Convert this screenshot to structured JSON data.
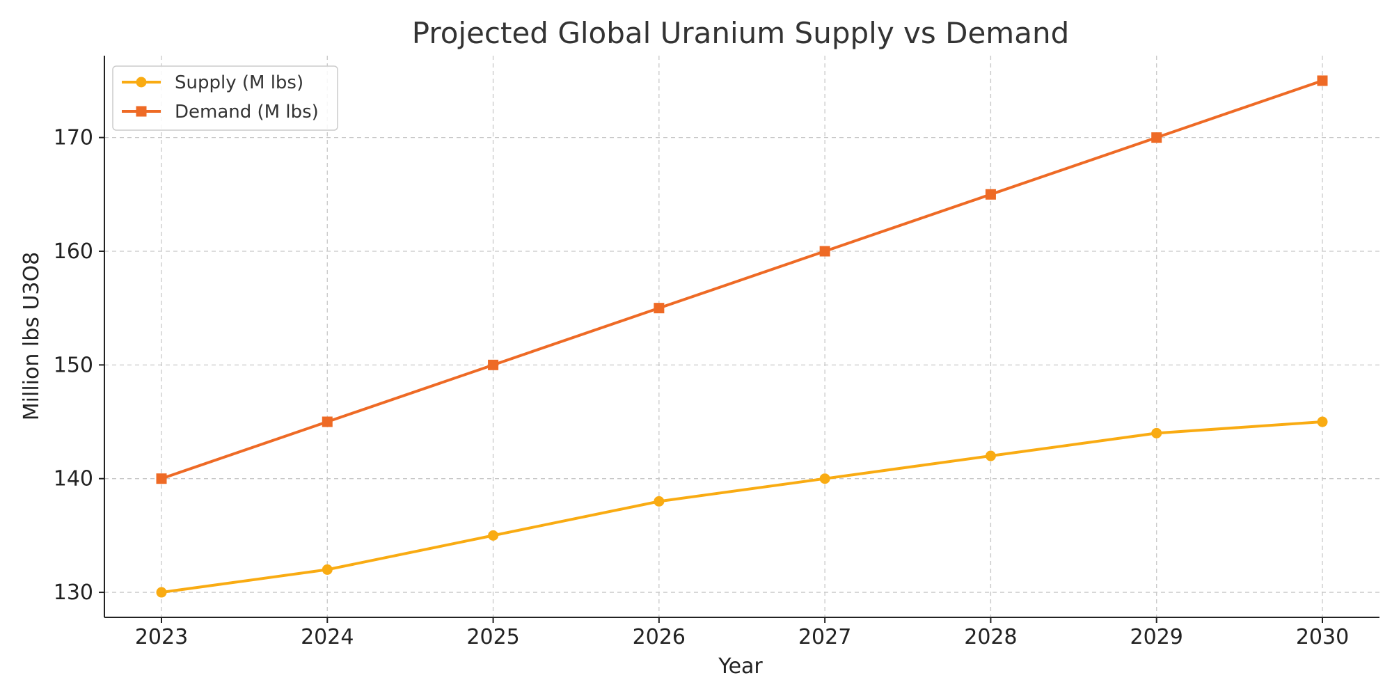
{
  "chart_data": {
    "type": "line",
    "title": "Projected Global Uranium Supply vs Demand",
    "xlabel": "Year",
    "ylabel": "Million lbs U3O8",
    "x": [
      2023,
      2024,
      2025,
      2026,
      2027,
      2028,
      2029,
      2030
    ],
    "ylim": [
      127.8,
      177.2
    ],
    "yticks": [
      130,
      140,
      150,
      160,
      170
    ],
    "grid": true,
    "legend": "top-left",
    "series": [
      {
        "name": "Supply (M lbs)",
        "values": [
          130,
          132,
          135,
          138,
          140,
          142,
          144,
          145
        ],
        "color": "#F9AB12",
        "marker": "circle"
      },
      {
        "name": "Demand (M lbs)",
        "values": [
          140,
          145,
          150,
          155,
          160,
          165,
          170,
          175
        ],
        "color": "#EE6A25",
        "marker": "square"
      }
    ]
  }
}
